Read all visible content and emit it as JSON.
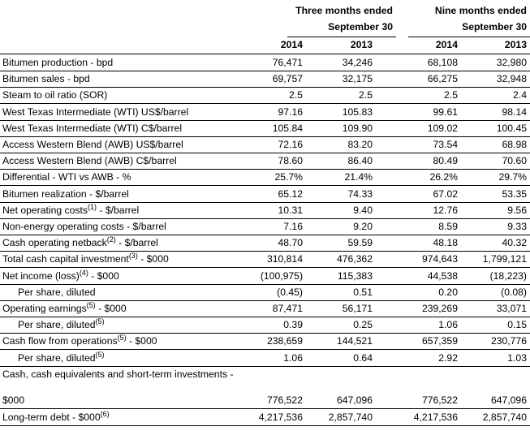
{
  "headers": {
    "three_months_line1": "Three months ended",
    "three_months_line2": "September 30",
    "nine_months_line1": "Nine months ended",
    "nine_months_line2": "September 30",
    "years": [
      "2014",
      "2013",
      "2014",
      "2013"
    ]
  },
  "rows": [
    {
      "label": "Bitumen production - bpd",
      "values": [
        "76,471",
        "34,246",
        "68,108",
        "32,980"
      ]
    },
    {
      "label": "Bitumen sales - bpd",
      "values": [
        "69,757",
        "32,175",
        "66,275",
        "32,948"
      ]
    },
    {
      "label": "Steam to oil ratio (SOR)",
      "values": [
        "2.5",
        "2.5",
        "2.5",
        "2.4"
      ]
    },
    {
      "label": "West Texas Intermediate (WTI) US$/barrel",
      "values": [
        "97.16",
        "105.83",
        "99.61",
        "98.14"
      ]
    },
    {
      "label": "West Texas Intermediate (WTI) C$/barrel",
      "values": [
        "105.84",
        "109.90",
        "109.02",
        "100.45"
      ]
    },
    {
      "label": "Access Western Blend (AWB) US$/barrel",
      "values": [
        "72.16",
        "83.20",
        "73.54",
        "68.98"
      ]
    },
    {
      "label": "Access Western Blend (AWB) C$/barrel",
      "values": [
        "78.60",
        "86.40",
        "80.49",
        "70.60"
      ]
    },
    {
      "label": "Differential - WTI vs AWB - %",
      "values": [
        "25.7%",
        "21.4%",
        "26.2%",
        "29.7%"
      ]
    },
    {
      "label": "Bitumen realization - $/barrel",
      "values": [
        "65.12",
        "74.33",
        "67.02",
        "53.35"
      ]
    },
    {
      "label": "Net operating costs",
      "sup": "(1)",
      "suffix": " - $/barrel",
      "values": [
        "10.31",
        "9.40",
        "12.76",
        "9.56"
      ]
    },
    {
      "label": "Non-energy operating costs - $/barrel",
      "values": [
        "7.16",
        "9.20",
        "8.59",
        "9.33"
      ]
    },
    {
      "label": "Cash operating netback",
      "sup": "(2)",
      "suffix": " - $/barrel",
      "values": [
        "48.70",
        "59.59",
        "48.18",
        "40.32"
      ]
    },
    {
      "label": "Total cash capital investment",
      "sup": "(3)",
      "suffix": " - $000",
      "values": [
        "310,814",
        "476,362",
        "974,643",
        "1,799,121"
      ]
    },
    {
      "label": "Net income (loss)",
      "sup": "(4)",
      "suffix": " - $000",
      "values": [
        "(100,975)",
        "115,383",
        "44,538",
        "(18,223)"
      ]
    },
    {
      "label": "Per share, diluted",
      "indent": true,
      "values": [
        "(0.45)",
        "0.51",
        "0.20",
        "(0.08)"
      ]
    },
    {
      "label": "Operating earnings",
      "sup": "(5)",
      "suffix": " - $000",
      "values": [
        "87,471",
        "56,171",
        "239,269",
        "33,071"
      ]
    },
    {
      "label": "Per share, diluted",
      "sup": "(5)",
      "indent": true,
      "values": [
        "0.39",
        "0.25",
        "1.06",
        "0.15"
      ]
    },
    {
      "label": "Cash flow from operations",
      "sup": "(5)",
      "suffix": " - $000",
      "values": [
        "238,659",
        "144,521",
        "657,359",
        "230,776"
      ]
    },
    {
      "label": "Per share, diluted",
      "sup": "(5)",
      "indent": true,
      "values": [
        "1.06",
        "0.64",
        "2.92",
        "1.03"
      ]
    },
    {
      "label": "Cash, cash equivalents and short-term investments -",
      "values": [
        "",
        "",
        "",
        ""
      ],
      "norule": true
    },
    {
      "label": "$000",
      "values": [
        "776,522",
        "647,096",
        "776,522",
        "647,096"
      ]
    },
    {
      "label": "Long-term debt - $000",
      "sup": "(6)",
      "values": [
        "4,217,536",
        "2,857,740",
        "4,217,536",
        "2,857,740"
      ]
    }
  ]
}
